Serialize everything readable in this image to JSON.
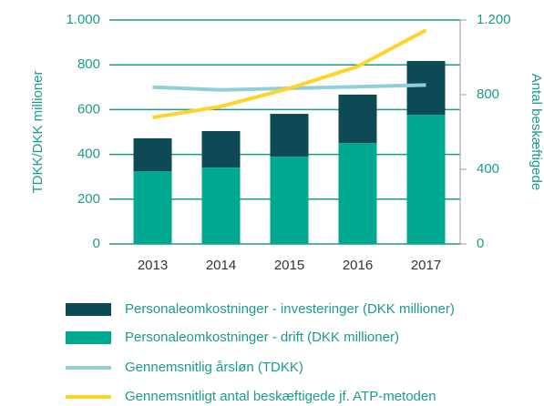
{
  "chart_data": {
    "type": "bar",
    "y_label": "TDKK/DKK millioner",
    "y2_label": "Antal beskæftigede",
    "categories": [
      "2013",
      "2014",
      "2015",
      "2016",
      "2017"
    ],
    "series": [
      {
        "name": "Personaleomkostninger - investeringer (DKK millioner)",
        "color": "#0d4a56",
        "type": "bar",
        "stack": "top",
        "values": [
          147,
          163,
          191,
          216,
          240
        ]
      },
      {
        "name": "Personaleomkostninger - drift (DKK millioner)",
        "color": "#00a88f",
        "type": "bar",
        "stack": "base",
        "values": [
          325,
          341,
          390,
          451,
          577
        ]
      },
      {
        "name": "Gennemsnitlig årsløn (TDKK)",
        "color": "#8fd0d8",
        "type": "line",
        "values": [
          700,
          688,
          695,
          702,
          710
        ]
      },
      {
        "name": "Gennemsnitligt antal beskæftigede jf. ATP-metoden",
        "color": "#ffd42a",
        "type": "line",
        "axis": "y2",
        "values": [
          678,
          737,
          834,
          951,
          1146
        ]
      }
    ],
    "ylim": [
      0,
      1000
    ],
    "yticks": [
      0,
      200,
      400,
      600,
      800,
      {
        "value": 1000,
        "label": "1.000"
      }
    ],
    "y2lim": [
      0,
      1200
    ],
    "y2ticks": [
      0,
      400,
      800,
      {
        "value": 1200,
        "label": "1.200"
      }
    ],
    "grid": true
  }
}
